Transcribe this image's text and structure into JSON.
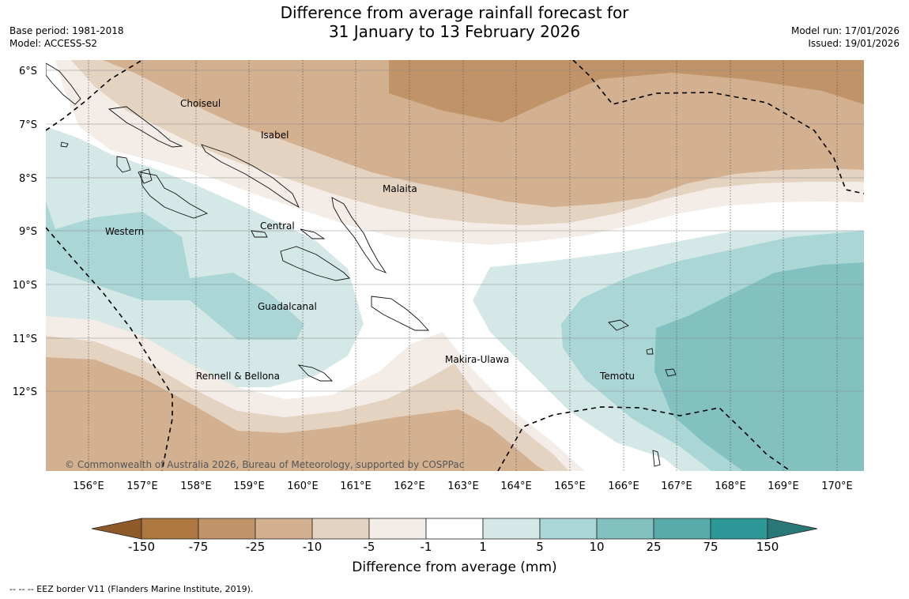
{
  "header": {
    "title_line1": "Difference from average rainfall forecast for",
    "title_line2": "31 January to 13 February 2026",
    "base_period": "Base period: 1981-2018",
    "model": "Model: ACCESS-S2",
    "model_run": "Model run: 17/01/2026",
    "issued": "Issued: 19/01/2026"
  },
  "map": {
    "lon_ticks": [
      "156°E",
      "157°E",
      "158°E",
      "159°E",
      "160°E",
      "161°E",
      "162°E",
      "163°E",
      "164°E",
      "165°E",
      "166°E",
      "167°E",
      "168°E",
      "169°E",
      "170°E"
    ],
    "lat_ticks": [
      "6°S",
      "7°S",
      "8°S",
      "9°S",
      "10°S",
      "11°S",
      "12°S"
    ],
    "provinces": [
      "Choiseul",
      "Isabel",
      "Malaita",
      "Western",
      "Central",
      "Guadalcanal",
      "Makira-Ulawa",
      "Rennell & Bellona",
      "Temotu"
    ],
    "copyright": "© Commonwealth of Australia 2026, Bureau of Meteorology, supported by COSPPac"
  },
  "colorbar": {
    "title": "Difference from average (mm)",
    "ticks": [
      "-150",
      "-75",
      "-25",
      "-10",
      "-5",
      "-1",
      "1",
      "5",
      "10",
      "25",
      "75",
      "150"
    ],
    "colors": {
      "lt_-150": "#8e5a2a",
      "-150_-75": "#ae7740",
      "-75_-25": "#c09468",
      "-25_-10": "#d3b090",
      "-10_-5": "#e5d3c2",
      "-5_-1": "#f4ece6",
      "-1_1": "#ffffff",
      "1_5": "#d5e8e8",
      "5_10": "#abd6d6",
      "10_25": "#83c1c1",
      "25_75": "#58abab",
      "75_150": "#2e9797",
      "gt_150": "#287878"
    }
  },
  "footer": {
    "legend": "--  --  -- EEZ border V11 (Flanders Marine Institute, 2019)."
  }
}
